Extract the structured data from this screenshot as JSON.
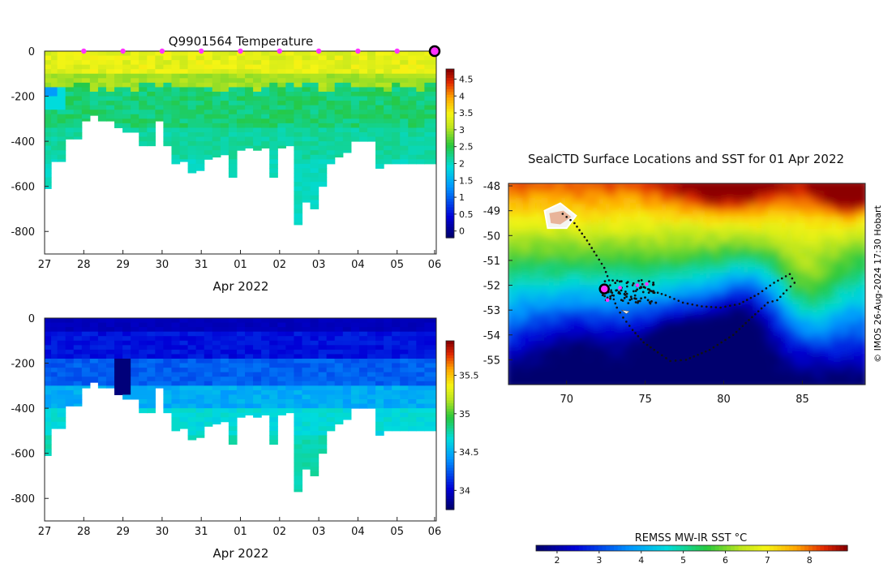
{
  "chart_data": [
    {
      "type": "heatmap",
      "title": "Q9901564  Temperature",
      "xlabel": "Apr 2022",
      "x_ticks": [
        "27",
        "28",
        "29",
        "30",
        "31",
        "01",
        "02",
        "03",
        "04",
        "05",
        "06"
      ],
      "y_ticks": [
        "0",
        "-200",
        "-400",
        "-600",
        "-800"
      ],
      "ylim": [
        -900,
        0
      ],
      "colorbar_ticks": [
        "0",
        "0.5",
        "1",
        "1.5",
        "2",
        "2.5",
        "3",
        "3.5",
        "4",
        "4.5"
      ],
      "colorbar_range": [
        -0.2,
        4.8
      ],
      "profile_days": [
        0,
        0.15,
        0.3,
        0.5,
        0.7,
        0.9,
        1.1,
        1.3,
        1.5,
        1.7,
        1.9,
        2.1,
        2.3,
        2.5,
        2.7,
        2.9,
        3.1,
        3.3,
        3.5,
        3.7,
        3.9,
        4.1,
        4.3,
        4.5,
        4.7,
        4.9,
        5.1,
        5.3,
        5.5,
        5.7,
        5.9,
        6.1,
        6.3,
        6.5,
        6.7,
        6.9,
        7.1,
        7.3,
        7.5,
        7.7,
        7.9,
        8.1,
        8.3,
        8.5,
        8.7,
        8.9,
        9.1,
        9.3
      ],
      "profile_max_depth": [
        610,
        490,
        490,
        390,
        390,
        310,
        285,
        310,
        310,
        340,
        360,
        360,
        420,
        420,
        310,
        420,
        500,
        490,
        540,
        530,
        480,
        470,
        460,
        560,
        440,
        430,
        440,
        430,
        560,
        430,
        420,
        770,
        670,
        700,
        600,
        500,
        470,
        450,
        400,
        400,
        400,
        520,
        500,
        500,
        500,
        500,
        500,
        500
      ],
      "surface_markers_days": [
        1,
        2,
        3,
        4,
        5,
        6,
        7,
        8,
        9
      ],
      "current_marker_day": 10
    },
    {
      "type": "heatmap",
      "title": "",
      "xlabel": "Apr 2022",
      "x_ticks": [
        "27",
        "28",
        "29",
        "30",
        "31",
        "01",
        "02",
        "03",
        "04",
        "05",
        "06"
      ],
      "y_ticks": [
        "0",
        "-200",
        "-400",
        "-600",
        "-800"
      ],
      "ylim": [
        -900,
        0
      ],
      "colorbar_ticks": [
        "34",
        "34.5",
        "35",
        "35.5"
      ],
      "colorbar_range": [
        33.75,
        35.95
      ]
    },
    {
      "type": "heatmap",
      "title": "SealCTD Surface Locations and SST for 01 Apr 2022",
      "x_ticks": [
        "70",
        "75",
        "80",
        "85"
      ],
      "y_ticks": [
        "-48",
        "-49",
        "-50",
        "-51",
        "-52",
        "-53",
        "-54",
        "-55"
      ],
      "xlim": [
        66.3,
        89
      ],
      "ylim": [
        -56,
        -47.9
      ],
      "colorbar_label": "REMSS MW-IR SST °C",
      "colorbar_ticks": [
        "2",
        "3",
        "4",
        "5",
        "6",
        "7",
        "8"
      ],
      "colorbar_range": [
        1.5,
        8.9
      ],
      "track": [
        [
          72.5,
          -52.6
        ],
        [
          72.6,
          -52.5
        ],
        [
          72.9,
          -52.3
        ],
        [
          73.5,
          -52.1
        ],
        [
          74.2,
          -52.0
        ],
        [
          75.0,
          -52.1
        ],
        [
          75.8,
          -52.3
        ],
        [
          76.3,
          -52.4
        ],
        [
          77.4,
          -52.7
        ],
        [
          78.6,
          -52.85
        ],
        [
          79.8,
          -52.9
        ],
        [
          81.0,
          -52.75
        ],
        [
          82.2,
          -52.35
        ],
        [
          83.2,
          -51.9
        ],
        [
          84.2,
          -51.55
        ],
        [
          84.5,
          -51.9
        ],
        [
          84.0,
          -52.2
        ],
        [
          83.4,
          -52.6
        ],
        [
          82.8,
          -52.7
        ],
        [
          81.6,
          -53.4
        ],
        [
          80.6,
          -54.0
        ],
        [
          79.1,
          -54.6
        ],
        [
          77.6,
          -55.0
        ],
        [
          76.6,
          -55.05
        ],
        [
          75.8,
          -54.7
        ],
        [
          74.9,
          -54.3
        ],
        [
          74.2,
          -53.8
        ],
        [
          73.6,
          -53.3
        ],
        [
          73.2,
          -52.9
        ],
        [
          72.9,
          -52.4
        ],
        [
          72.7,
          -51.8
        ],
        [
          72.4,
          -51.3
        ],
        [
          71.9,
          -50.8
        ],
        [
          71.3,
          -50.2
        ],
        [
          70.5,
          -49.5
        ],
        [
          69.5,
          -49.0
        ]
      ],
      "current_position": [
        72.4,
        -52.15
      ],
      "magenta_points": [
        [
          72.6,
          -52.6
        ],
        [
          73.4,
          -52.1
        ],
        [
          74.5,
          -52.0
        ],
        [
          75.1,
          -51.95
        ]
      ]
    }
  ],
  "watermark": "© IMOS 26-Aug-2024 17:30 Hobart",
  "colors": {
    "magenta": "#ff33ff",
    "track": "#111111"
  }
}
